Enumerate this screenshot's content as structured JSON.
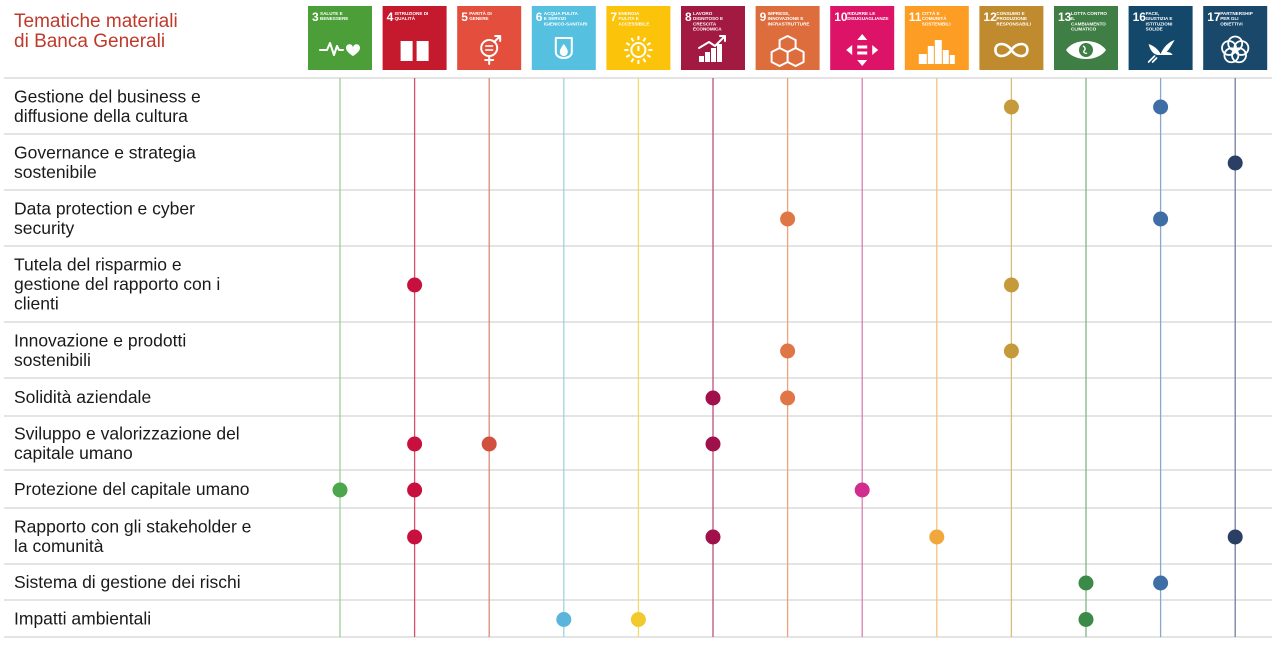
{
  "title": {
    "line1": "Tematiche materiali",
    "line2": "di Banca Generali"
  },
  "chart_data": {
    "type": "table",
    "columns": [
      {
        "goal": "3",
        "name": "SALUTE E BENESSERE",
        "color": "#4c9f38",
        "icon": "heartbeat-icon"
      },
      {
        "goal": "4",
        "name": "ISTRUZIONE DI QUALITÀ",
        "color": "#c5192d",
        "icon": "book-icon"
      },
      {
        "goal": "5",
        "name": "PARITÀ DI GENERE",
        "color": "#e34f3c",
        "icon": "gender-equality-icon"
      },
      {
        "goal": "6",
        "name": "ACQUA PULITA E SERVIZI IGIENICO-SANITARI",
        "color": "#56c0e1",
        "icon": "water-drop-icon"
      },
      {
        "goal": "7",
        "name": "ENERGIA PULITA E ACCESSIBILE",
        "color": "#fcc30b",
        "icon": "sun-power-icon"
      },
      {
        "goal": "8",
        "name": "LAVORO DIGNITOSO E CRESCITA ECONOMICA",
        "color": "#a21942",
        "icon": "growth-chart-icon"
      },
      {
        "goal": "9",
        "name": "IMPRESE, INNOVAZIONE E INFRASTRUTTURE",
        "color": "#dd6d3c",
        "icon": "cubes-icon"
      },
      {
        "goal": "10",
        "name": "RIDURRE LE DISUGUAGLIANZE",
        "color": "#dd1367",
        "icon": "equality-arrows-icon"
      },
      {
        "goal": "11",
        "name": "CITTÀ E COMUNITÀ SOSTENIBILI",
        "color": "#fd9d24",
        "icon": "city-icon"
      },
      {
        "goal": "12",
        "name": "CONSUMO E PRODUZIONE RESPONSABILI",
        "color": "#bf8b2e",
        "icon": "infinity-icon"
      },
      {
        "goal": "13",
        "name": "LOTTA CONTRO IL CAMBIAMENTO CLIMATICO",
        "color": "#3f7e44",
        "icon": "eye-globe-icon"
      },
      {
        "goal": "16",
        "name": "PACE, GIUSTIZIA E ISTITUZIONI SOLIDE",
        "color": "#13486b",
        "icon": "dove-icon"
      },
      {
        "goal": "17",
        "name": "PARTNERSHIP PER GLI OBIETTIVI",
        "color": "#19486a",
        "icon": "flower-rings-icon"
      }
    ],
    "rows": [
      {
        "lines": [
          "Gestione del business e",
          "diffusione della cultura"
        ],
        "goals": [
          "12",
          "16"
        ]
      },
      {
        "lines": [
          "Governance e strategia",
          "sostenibile"
        ],
        "goals": [
          "17"
        ]
      },
      {
        "lines": [
          "Data protection e cyber",
          "security"
        ],
        "goals": [
          "9",
          "16"
        ]
      },
      {
        "lines": [
          "Tutela del risparmio e",
          "gestione del rapporto con i",
          "clienti"
        ],
        "goals": [
          "4",
          "12"
        ]
      },
      {
        "lines": [
          "Innovazione e prodotti",
          "sostenibili"
        ],
        "goals": [
          "9",
          "12"
        ]
      },
      {
        "lines": [
          "Solidità aziendale"
        ],
        "goals": [
          "8",
          "9"
        ]
      },
      {
        "lines": [
          "Sviluppo e valorizzazione del",
          "capitale umano"
        ],
        "goals": [
          "4",
          "5",
          "8"
        ]
      },
      {
        "lines": [
          "Protezione del capitale umano"
        ],
        "goals": [
          "3",
          "4",
          "10"
        ]
      },
      {
        "lines": [
          "Rapporto con gli stakeholder e",
          "la comunità"
        ],
        "goals": [
          "4",
          "8",
          "11",
          "17"
        ]
      },
      {
        "lines": [
          "Sistema di gestione dei rischi"
        ],
        "goals": [
          "13",
          "16"
        ]
      },
      {
        "lines": [
          "Impatti ambientali"
        ],
        "goals": [
          "6",
          "7",
          "13"
        ]
      }
    ],
    "dot_colors": {
      "3": "#4ca64c",
      "4": "#c8103e",
      "5": "#d2503f",
      "6": "#5ab4dc",
      "7": "#f2c92c",
      "8": "#a0104a",
      "9": "#e07545",
      "10": "#d12d8f",
      "11": "#f0a83c",
      "12": "#c49a3a",
      "13": "#3c8a48",
      "16": "#3f6ea7",
      "17": "#2a3f63"
    },
    "line_colors": {
      "3": "#9fd19a",
      "4": "#d9506a",
      "5": "#e08878",
      "6": "#9ad4ea",
      "7": "#f5d96a",
      "8": "#b9557a",
      "9": "#eba27e",
      "10": "#d77fb5",
      "11": "#f4c47f",
      "12": "#d8bd7b",
      "13": "#7fb586",
      "16": "#8aa8cc",
      "17": "#6e7fa0"
    }
  }
}
